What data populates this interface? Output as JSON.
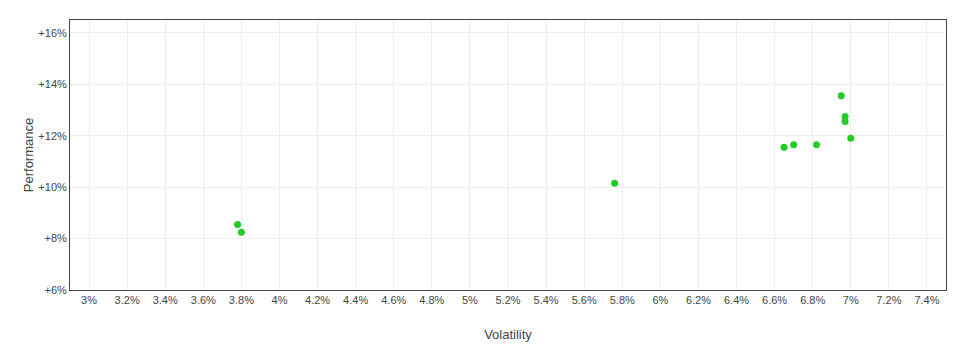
{
  "chart_data": {
    "type": "scatter",
    "xlabel": "Volatility",
    "ylabel": "Performance",
    "color": "#22cc22",
    "x": [
      3.78,
      3.8,
      5.76,
      6.65,
      6.7,
      6.82,
      6.95,
      6.97,
      6.97,
      7.0
    ],
    "values": [
      8.55,
      8.25,
      10.15,
      11.55,
      11.65,
      11.65,
      13.55,
      12.75,
      12.55,
      11.9
    ],
    "xlim": [
      2.9,
      7.5
    ],
    "ylim": [
      6.0,
      16.5
    ],
    "xticks": [
      {
        "value": 3.0,
        "label": "3%"
      },
      {
        "value": 3.2,
        "label": "3.2%"
      },
      {
        "value": 3.4,
        "label": "3.4%"
      },
      {
        "value": 3.6,
        "label": "3.6%"
      },
      {
        "value": 3.8,
        "label": "3.8%"
      },
      {
        "value": 4.0,
        "label": "4%"
      },
      {
        "value": 4.2,
        "label": "4.2%"
      },
      {
        "value": 4.4,
        "label": "4.4%"
      },
      {
        "value": 4.6,
        "label": "4.6%"
      },
      {
        "value": 4.8,
        "label": "4.8%"
      },
      {
        "value": 5.0,
        "label": "5%"
      },
      {
        "value": 5.2,
        "label": "5.2%"
      },
      {
        "value": 5.4,
        "label": "5.4%"
      },
      {
        "value": 5.6,
        "label": "5.6%"
      },
      {
        "value": 5.8,
        "label": "5.8%"
      },
      {
        "value": 6.0,
        "label": "6%"
      },
      {
        "value": 6.2,
        "label": "6.2%"
      },
      {
        "value": 6.4,
        "label": "6.4%"
      },
      {
        "value": 6.6,
        "label": "6.6%"
      },
      {
        "value": 6.8,
        "label": "6.8%"
      },
      {
        "value": 7.0,
        "label": "7%"
      },
      {
        "value": 7.2,
        "label": "7.2%"
      },
      {
        "value": 7.4,
        "label": "7.4%"
      }
    ],
    "yticks": [
      {
        "value": 6.0,
        "label": "+6%"
      },
      {
        "value": 8.0,
        "label": "+8%"
      },
      {
        "value": 10.0,
        "label": "+10%"
      },
      {
        "value": 12.0,
        "label": "+12%"
      },
      {
        "value": 14.0,
        "label": "+14%"
      },
      {
        "value": 16.0,
        "label": "+16%"
      }
    ],
    "grid": true
  }
}
